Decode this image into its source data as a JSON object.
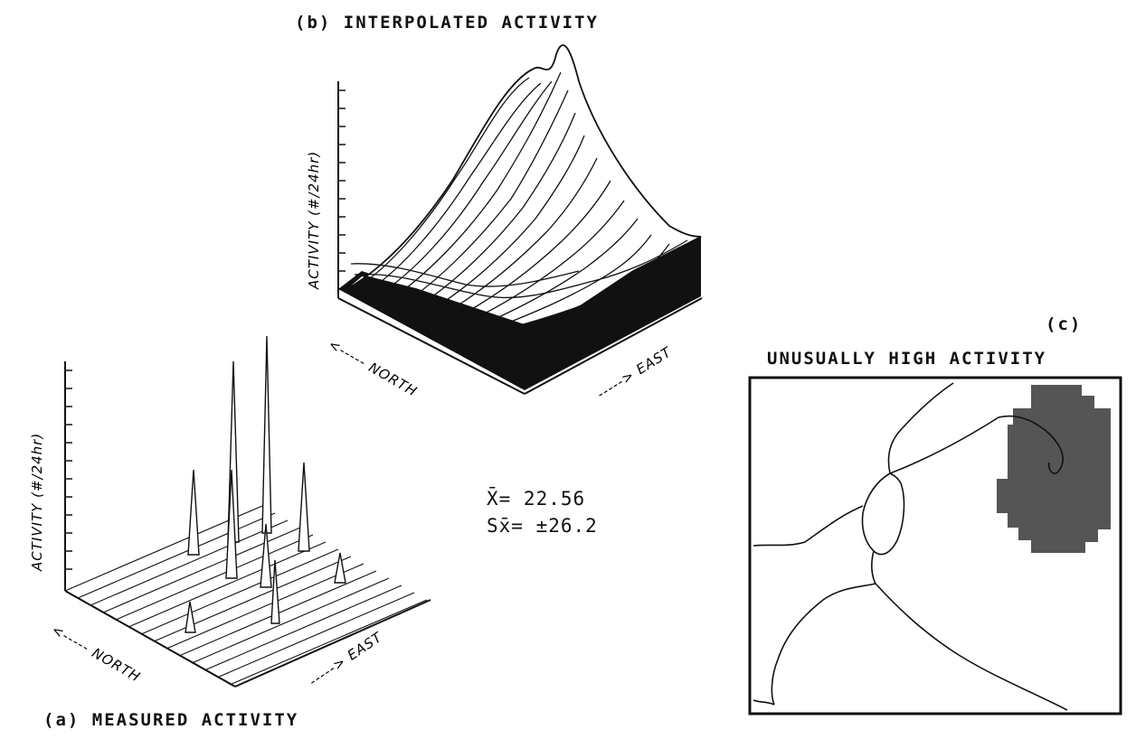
{
  "panels": {
    "b": {
      "title": "(b) INTERPOLATED ACTIVITY",
      "zlabel": "ACTIVITY (#/24hr)",
      "north_label": "<----- NORTH",
      "east_label": "-----> EAST"
    },
    "a": {
      "title": "(a) MEASURED ACTIVITY",
      "zlabel": "ACTIVITY (#/24hr)",
      "north_label": "<----- NORTH",
      "east_label": "-----> EAST"
    },
    "c": {
      "letter": "(c)",
      "title": "UNUSUALLY HIGH ACTIVITY"
    }
  },
  "stats": {
    "mean": "X̄= 22.56",
    "sd": "Sx̄= ±26.2"
  },
  "colors": {
    "ink": "#111111",
    "highlight_region": "#555555",
    "background": "#ffffff"
  }
}
